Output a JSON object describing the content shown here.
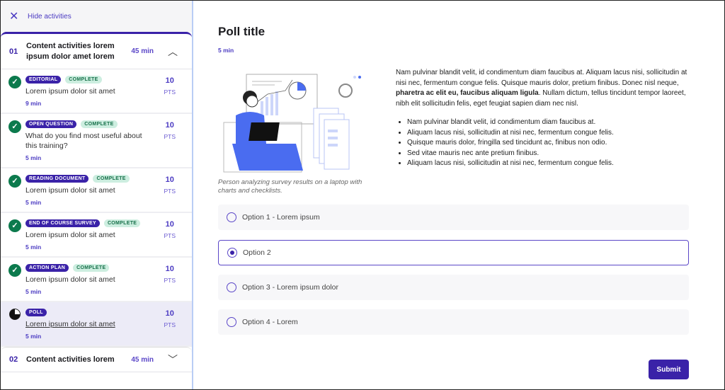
{
  "sidebar": {
    "hide_label": "Hide activities",
    "sections": [
      {
        "num": "01",
        "title": "Content activities lorem ipsum dolor amet lorem",
        "duration": "45 min",
        "expanded": true
      },
      {
        "num": "02",
        "title": "Content activities lorem",
        "duration": "45 min",
        "expanded": false
      }
    ],
    "items": [
      {
        "type": "EDITORIAL",
        "status": "COMPLETE",
        "text": "Lorem ipsum dolor sit amet",
        "duration": "9 min",
        "points": "10",
        "pts_label": "PTS"
      },
      {
        "type": "OPEN QUESTION",
        "status": "COMPLETE",
        "text": "What do you find most useful about this training?",
        "duration": "5 min",
        "points": "10",
        "pts_label": "PTS"
      },
      {
        "type": "READING DOCUMENT",
        "status": "COMPLETE",
        "text": "Lorem ipsum dolor sit amet",
        "duration": "5 min",
        "points": "10",
        "pts_label": "PTS"
      },
      {
        "type": "END OF COURSE SURVEY",
        "status": "COMPLETE",
        "text": "Lorem ipsum dolor sit amet",
        "duration": "5 min",
        "points": "10",
        "pts_label": "PTS"
      },
      {
        "type": "ACTION PLAN",
        "status": "COMPLETE",
        "text": "Lorem ipsum dolor sit amet",
        "duration": "5 min",
        "points": "10",
        "pts_label": "PTS"
      },
      {
        "type": "POLL",
        "status": "",
        "text": "Lorem ipsum dolor sit amet",
        "duration": "5 min",
        "points": "10",
        "pts_label": "PTS",
        "active": true
      }
    ]
  },
  "main": {
    "title": "Poll title",
    "duration": "5  min",
    "caption": "Person analyzing survey results on a laptop with charts and checklists.",
    "para_1": "Nam pulvinar blandit velit, id condimentum diam faucibus at. Aliquam lacus nisi, sollicitudin at nisi nec, fermentum congue felis. Quisque mauris dolor,  pretium finibus. Donec nisl neque, ",
    "para_bold": "pharetra ac elit eu, faucibus aliquam ligula",
    "para_2": ". Nullam dictum, tellus tincidunt tempor laoreet, nibh elit sollicitudin felis, eget feugiat sapien diam nec nisl.",
    "bullets": [
      "Nam pulvinar blandit velit, id condimentum diam faucibus at.",
      "Aliquam lacus nisi, sollicitudin at nisi nec, fermentum congue felis.",
      "Quisque mauris dolor, fringilla sed tincidunt ac, finibus non odio.",
      "Sed vitae mauris nec ante pretium finibus.",
      "Aliquam lacus nisi, sollicitudin at nisi nec, fermentum congue felis."
    ],
    "options": [
      "Option 1 - Lorem ipsum",
      "Option 2",
      "Option 3 - Lorem ipsum dolor",
      "Option 4 - Lorem"
    ],
    "selected_option": 1,
    "submit_label": "Submit"
  },
  "colors": {
    "accent": "#3a22a8",
    "complete_bg": "#cdeee0",
    "check": "#0c7a4d",
    "illustration": "#4a6cf0"
  }
}
